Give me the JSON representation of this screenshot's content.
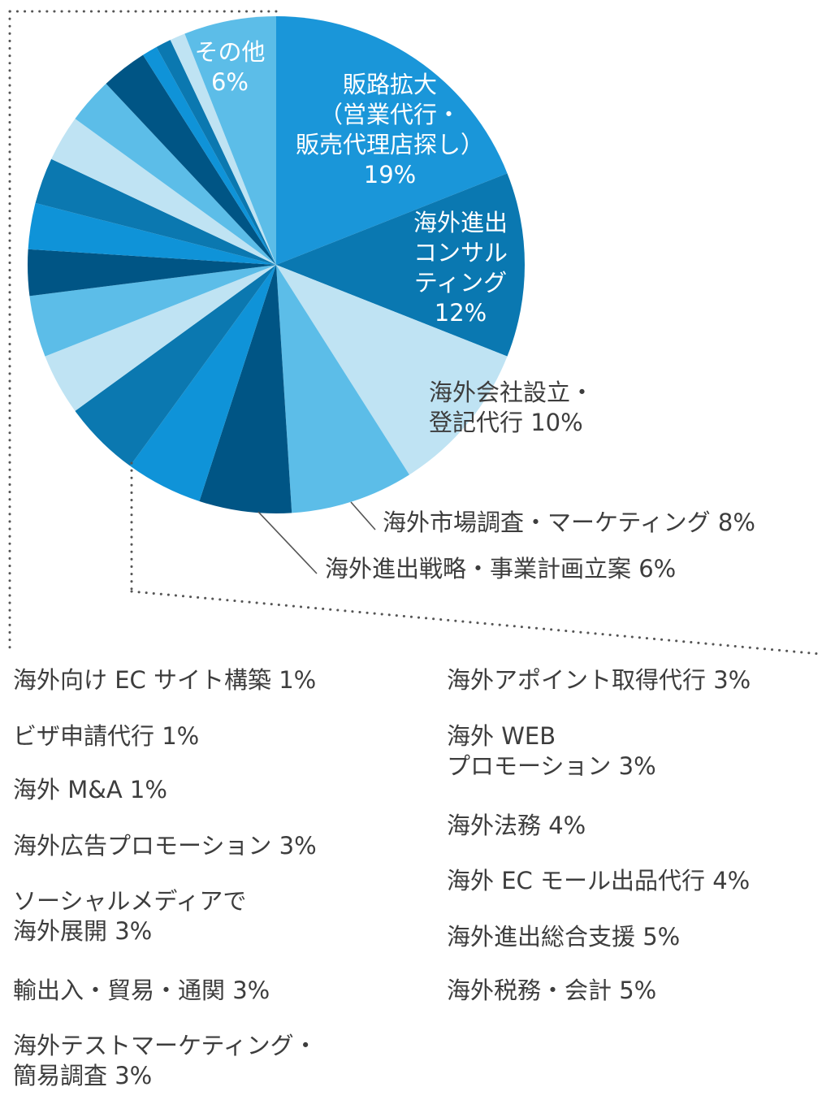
{
  "chart_data": {
    "type": "pie",
    "slices": [
      {
        "label": "販路拡大\n（営業代行・\n販売代理店探し）",
        "value": 19,
        "value_label": "19%",
        "color": "#1a96d9"
      },
      {
        "label": "海外進出\nコンサル\nティング",
        "value": 12,
        "value_label": "12%",
        "color": "#0a78b1"
      },
      {
        "label": "海外会社設立・\n登記代行",
        "value": 10,
        "value_label": "10%",
        "color": "#bfe3f3"
      },
      {
        "label": "海外市場調査・マーケティング",
        "value": 8,
        "value_label": "8%",
        "color": "#5cbde8"
      },
      {
        "label": "海外進出戦略・事業計画立案",
        "value": 6,
        "value_label": "6%",
        "color": "#005585"
      },
      {
        "label": "",
        "value": 5,
        "color": "#0f93d8"
      },
      {
        "label": "",
        "value": 5,
        "color": "#0b78b0"
      },
      {
        "label": "",
        "value": 4,
        "color": "#bfe3f3"
      },
      {
        "label": "",
        "value": 4,
        "color": "#5cbde8"
      },
      {
        "label": "",
        "value": 3,
        "color": "#005585"
      },
      {
        "label": "",
        "value": 3,
        "color": "#0f93d8"
      },
      {
        "label": "",
        "value": 3,
        "color": "#0b78b0"
      },
      {
        "label": "",
        "value": 3,
        "color": "#bfe3f3"
      },
      {
        "label": "",
        "value": 3,
        "color": "#5cbde8"
      },
      {
        "label": "",
        "value": 3,
        "color": "#005585"
      },
      {
        "label": "",
        "value": 1,
        "color": "#0f93d8"
      },
      {
        "label": "",
        "value": 1,
        "color": "#0b78b0"
      },
      {
        "label": "",
        "value": 1,
        "color": "#bfe3f3"
      },
      {
        "label": "その他",
        "value": 6,
        "value_label": "6%",
        "color": "#5cbde8"
      }
    ],
    "legend_left": [
      "海外向け EC サイト構築  1%",
      "ビザ申請代行  1%",
      "海外 M&A  1%",
      "海外広告プロモーション  3%",
      "ソーシャルメディアで\n海外展開  3%",
      "輸出入・貿易・通関  3%",
      "海外テストマーケティング・\n簡易調査  3%"
    ],
    "legend_right": [
      "海外アポイント取得代行  3%",
      "海外 WEB\nプロモーション  3%",
      "海外法務  4%",
      "海外 EC モール出品代行  4%",
      "海外進出総合支援  5%",
      "海外税務・会計  5%"
    ],
    "labels": {
      "slice0": "販路拡大\n（営業代行・\n販売代理店探し）\n19%",
      "slice1": "海外進出\nコンサル\nティング\n12%",
      "slice2": "海外会社設立・\n登記代行 10%",
      "slice3": "海外市場調査・マーケティング  8%",
      "slice4": "海外進出戦略・事業計画立案  6%",
      "other": "その他\n6%"
    },
    "colors": {
      "text": "#3d3d3d",
      "leader": "#555555",
      "dots": "#555555"
    }
  }
}
